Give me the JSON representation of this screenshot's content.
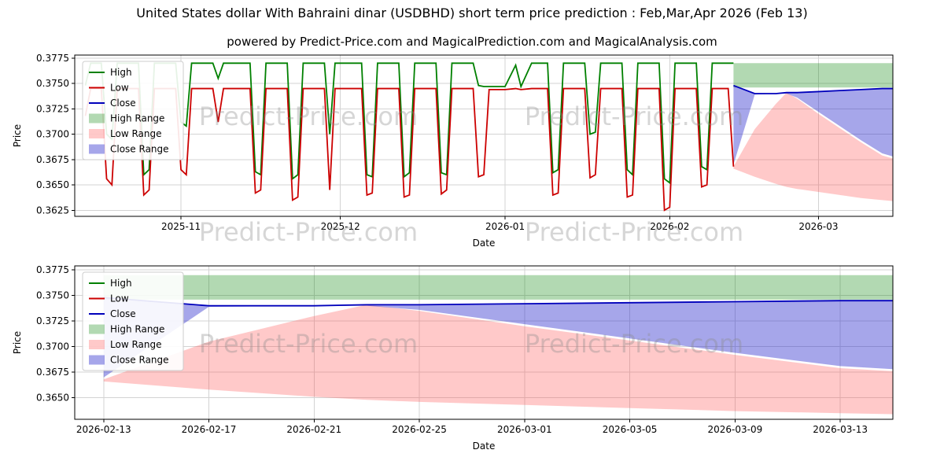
{
  "title": "United States dollar With Bahraini dinar (USDBHD) short term price prediction : Feb,Mar,Apr 2026 (Feb 13)",
  "subtitle": "powered by Predict-Price.com and MagicalPrediction.com and MagicalAnalysis.com",
  "watermark": "Predict-Price.com",
  "legend": {
    "items": [
      {
        "label": "High",
        "swatch": "line",
        "color": "#008000",
        "opacity": 1
      },
      {
        "label": "Low",
        "swatch": "line",
        "color": "#cc0000",
        "opacity": 1
      },
      {
        "label": "Close",
        "swatch": "line",
        "color": "#0000bb",
        "opacity": 1
      },
      {
        "label": "High Range",
        "swatch": "patch",
        "color": "#008000",
        "opacity": 0.3
      },
      {
        "label": "Low Range",
        "swatch": "patch",
        "color": "#ff4d4d",
        "opacity": 0.3
      },
      {
        "label": "Close Range",
        "swatch": "patch",
        "color": "#2b2bcc",
        "opacity": 0.42
      }
    ]
  },
  "colors": {
    "high": "#008000",
    "low": "#cc0000",
    "close": "#0000bb",
    "high_range": "#008000",
    "low_range": "#ff4d4d",
    "close_range": "#2b2bcc",
    "band_opacity": 0.3,
    "close_band_opacity": 0.42,
    "grid": "#d3d3d3",
    "frame": "#000000",
    "text": "#000000",
    "watermark": "#8a8a8a"
  },
  "chart_data": {
    "type": "line",
    "title": "United States dollar With Bahraini dinar (USDBHD) short term price prediction : Feb,Mar,Apr 2026 (Feb 13)",
    "charts": [
      {
        "name": "history-with-forecast",
        "x_domain": [
          -2,
          152
        ],
        "ylim": [
          0.3619,
          0.3778
        ],
        "xlabel": "Date",
        "ylabel": "Price",
        "grid": true,
        "legend_position": "upper left",
        "show_historical": true,
        "xticks": [
          {
            "v": 18,
            "label": "2025-11"
          },
          {
            "v": 48,
            "label": "2025-12"
          },
          {
            "v": 79,
            "label": "2026-01"
          },
          {
            "v": 110,
            "label": "2026-02"
          },
          {
            "v": 138,
            "label": "2026-03"
          }
        ],
        "yticks": [
          {
            "v": 0.3775,
            "label": "0.3775"
          },
          {
            "v": 0.375,
            "label": "0.3750"
          },
          {
            "v": 0.3725,
            "label": "0.3725"
          },
          {
            "v": 0.37,
            "label": "0.3700"
          },
          {
            "v": 0.3675,
            "label": "0.3675"
          },
          {
            "v": 0.365,
            "label": "0.3650"
          },
          {
            "v": 0.3625,
            "label": "0.3625"
          }
        ]
      },
      {
        "name": "forecast-detail",
        "x_domain": [
          120.9,
          152
        ],
        "ylim": [
          0.3629,
          0.3779
        ],
        "xlabel": "Date",
        "ylabel": "Price",
        "grid": true,
        "legend_position": "upper left",
        "show_historical": false,
        "xticks": [
          {
            "v": 122,
            "label": "2026-02-13"
          },
          {
            "v": 126,
            "label": "2026-02-17"
          },
          {
            "v": 130,
            "label": "2026-02-21"
          },
          {
            "v": 134,
            "label": "2026-02-25"
          },
          {
            "v": 138,
            "label": "2026-03-01"
          },
          {
            "v": 142,
            "label": "2026-03-05"
          },
          {
            "v": 146,
            "label": "2026-03-09"
          },
          {
            "v": 150,
            "label": "2026-03-13"
          }
        ],
        "yticks": [
          {
            "v": 0.3775,
            "label": "0.3775"
          },
          {
            "v": 0.375,
            "label": "0.3750"
          },
          {
            "v": 0.3725,
            "label": "0.3725"
          },
          {
            "v": 0.37,
            "label": "0.3700"
          },
          {
            "v": 0.3675,
            "label": "0.3675"
          },
          {
            "v": 0.365,
            "label": "0.3650"
          }
        ]
      }
    ],
    "historical": {
      "epoch_date": "2025-10-14",
      "x_unit": "days_from_epoch",
      "columns": [
        "day",
        "high",
        "low"
      ],
      "points": [
        [
          0,
          0.3748,
          0.3718
        ],
        [
          1,
          0.377,
          0.3745
        ],
        [
          3,
          0.377,
          0.3745
        ],
        [
          4,
          0.37,
          0.3656
        ],
        [
          5,
          0.3695,
          0.365
        ],
        [
          6,
          0.377,
          0.3745
        ],
        [
          10,
          0.377,
          0.3745
        ],
        [
          11,
          0.366,
          0.364
        ],
        [
          12,
          0.3665,
          0.3645
        ],
        [
          13,
          0.377,
          0.3745
        ],
        [
          17,
          0.377,
          0.3745
        ],
        [
          18,
          0.3712,
          0.3665
        ],
        [
          19,
          0.3708,
          0.366
        ],
        [
          20,
          0.377,
          0.3745
        ],
        [
          24,
          0.377,
          0.3745
        ],
        [
          25,
          0.3755,
          0.3712
        ],
        [
          26,
          0.377,
          0.3745
        ],
        [
          31,
          0.377,
          0.3745
        ],
        [
          32,
          0.3663,
          0.3642
        ],
        [
          33,
          0.366,
          0.3645
        ],
        [
          34,
          0.377,
          0.3745
        ],
        [
          38,
          0.377,
          0.3745
        ],
        [
          39,
          0.3656,
          0.3635
        ],
        [
          40,
          0.366,
          0.3638
        ],
        [
          41,
          0.377,
          0.3745
        ],
        [
          45,
          0.377,
          0.3745
        ],
        [
          46,
          0.37,
          0.3645
        ],
        [
          47,
          0.377,
          0.3745
        ],
        [
          52,
          0.377,
          0.3745
        ],
        [
          53,
          0.366,
          0.364
        ],
        [
          54,
          0.3658,
          0.3642
        ],
        [
          55,
          0.377,
          0.3745
        ],
        [
          59,
          0.377,
          0.3745
        ],
        [
          60,
          0.3658,
          0.3638
        ],
        [
          61,
          0.3662,
          0.364
        ],
        [
          62,
          0.377,
          0.3745
        ],
        [
          66,
          0.377,
          0.3745
        ],
        [
          67,
          0.3662,
          0.3641
        ],
        [
          68,
          0.366,
          0.3645
        ],
        [
          69,
          0.377,
          0.3745
        ],
        [
          73,
          0.377,
          0.3745
        ],
        [
          74,
          0.3748,
          0.3658
        ],
        [
          75,
          0.3747,
          0.366
        ],
        [
          76,
          0.3747,
          0.3744
        ],
        [
          79,
          0.3747,
          0.3744
        ],
        [
          81,
          0.3768,
          0.3745
        ],
        [
          82,
          0.3747,
          0.3744
        ],
        [
          84,
          0.377,
          0.3745
        ],
        [
          87,
          0.377,
          0.3745
        ],
        [
          88,
          0.3662,
          0.364
        ],
        [
          89,
          0.3665,
          0.3642
        ],
        [
          90,
          0.377,
          0.3745
        ],
        [
          94,
          0.377,
          0.3745
        ],
        [
          95,
          0.37,
          0.3657
        ],
        [
          96,
          0.3702,
          0.366
        ],
        [
          97,
          0.377,
          0.3745
        ],
        [
          101,
          0.377,
          0.3745
        ],
        [
          102,
          0.3665,
          0.3638
        ],
        [
          103,
          0.366,
          0.364
        ],
        [
          104,
          0.377,
          0.3745
        ],
        [
          108,
          0.377,
          0.3745
        ],
        [
          109,
          0.3656,
          0.3625
        ],
        [
          110,
          0.3652,
          0.3628
        ],
        [
          111,
          0.377,
          0.3745
        ],
        [
          115,
          0.377,
          0.3745
        ],
        [
          116,
          0.3668,
          0.3648
        ],
        [
          117,
          0.3665,
          0.365
        ],
        [
          118,
          0.377,
          0.3745
        ],
        [
          121,
          0.377,
          0.3745
        ],
        [
          122,
          0.377,
          0.3668
        ]
      ]
    },
    "prediction": {
      "start_date": "2026-02-13",
      "x_unit": "days_from_epoch",
      "days": [
        122,
        126,
        130,
        132,
        134,
        138,
        142,
        146,
        150,
        152
      ],
      "close": [
        0.3748,
        0.374,
        0.374,
        0.3741,
        0.3741,
        0.3742,
        0.3743,
        0.3744,
        0.3745,
        0.3745
      ],
      "close_range_lower": [
        0.367,
        0.3739,
        0.374,
        0.374,
        0.3736,
        0.3722,
        0.3708,
        0.3694,
        0.3681,
        0.3678
      ],
      "high_range_upper": [
        0.377,
        0.377,
        0.377,
        0.377,
        0.377,
        0.377,
        0.377,
        0.377,
        0.377,
        0.377
      ],
      "high_range_lower": [
        0.3746,
        0.3746,
        0.3746,
        0.3746,
        0.3746,
        0.3746,
        0.3746,
        0.3746,
        0.3746,
        0.3746
      ],
      "low_range_upper": [
        0.3668,
        0.3705,
        0.373,
        0.3741,
        0.3735,
        0.372,
        0.3706,
        0.3692,
        0.3679,
        0.3676
      ],
      "low_range_lower": [
        0.3666,
        0.3658,
        0.3651,
        0.3648,
        0.3646,
        0.3643,
        0.364,
        0.3637,
        0.3635,
        0.3634
      ]
    }
  }
}
